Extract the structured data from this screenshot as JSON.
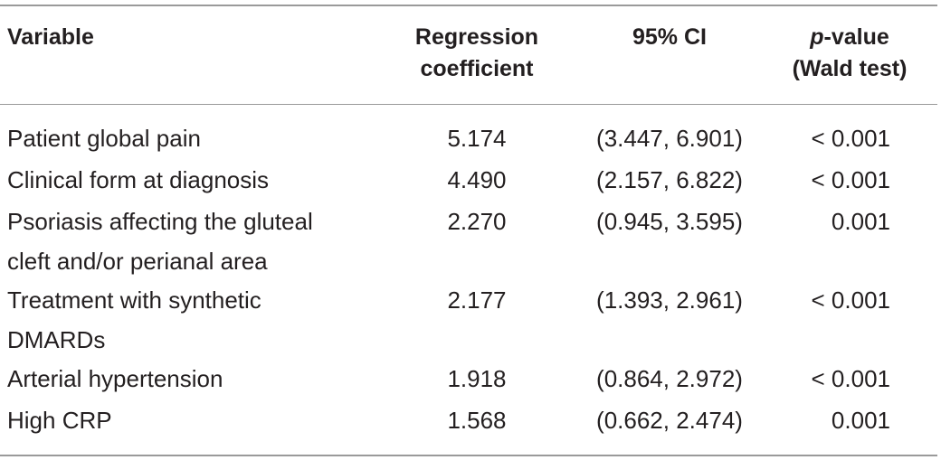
{
  "headers": {
    "variable": "Variable",
    "coef_line1": "Regression",
    "coef_line2": "coefficient",
    "ci": "95% CI",
    "p_italic": "p",
    "p_rest": "-value",
    "p_line2": "(Wald test)"
  },
  "rows": [
    {
      "variable_line1": "Patient global pain",
      "variable_line2": "",
      "coef": "5.174",
      "ci": "(3.447, 6.901)",
      "p": "< 0.001"
    },
    {
      "variable_line1": "Clinical form at diagnosis",
      "variable_line2": "",
      "coef": "4.490",
      "ci": "(2.157, 6.822)",
      "p": "< 0.001"
    },
    {
      "variable_line1": "Psoriasis affecting the gluteal",
      "variable_line2": "cleft and/or perianal area",
      "coef": "2.270",
      "ci": "(0.945, 3.595)",
      "p": "0.001"
    },
    {
      "variable_line1": "Treatment with synthetic",
      "variable_line2": "DMARDs",
      "coef": "2.177",
      "ci": "(1.393, 2.961)",
      "p": "< 0.001"
    },
    {
      "variable_line1": "Arterial hypertension",
      "variable_line2": "",
      "coef": "1.918",
      "ci": "(0.864, 2.972)",
      "p": "< 0.001"
    },
    {
      "variable_line1": "High CRP",
      "variable_line2": "",
      "coef": "1.568",
      "ci": "(0.662, 2.474)",
      "p": "0.001"
    }
  ]
}
